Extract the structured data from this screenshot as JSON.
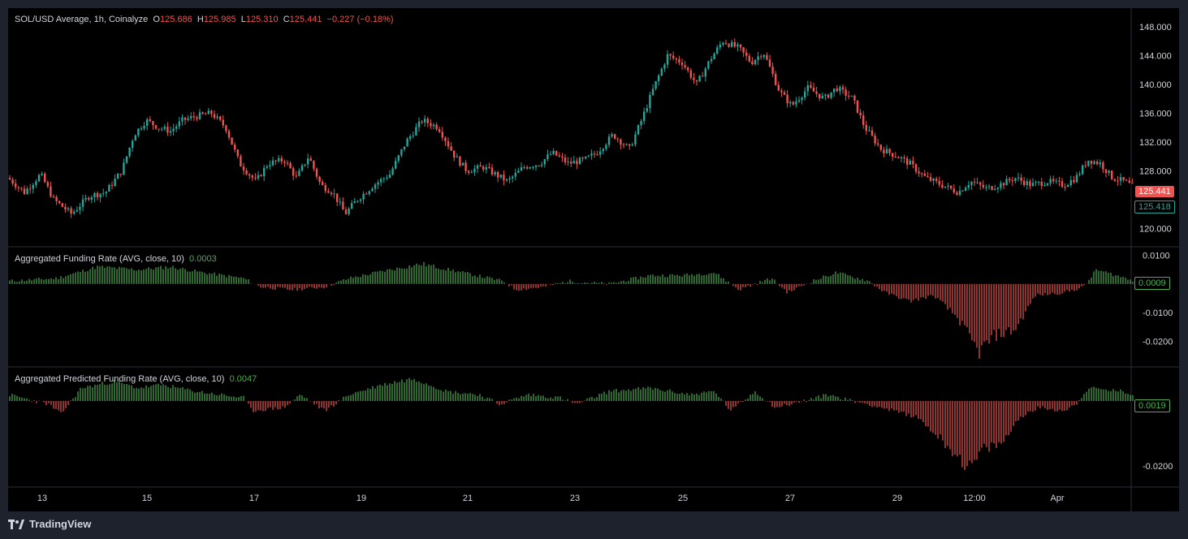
{
  "header": {
    "symbol": "SOL/USD Average, 1h, Coinalyze",
    "open_label": "O",
    "open": "125.686",
    "high_label": "H",
    "high": "125.985",
    "low_label": "L",
    "low": "125.310",
    "close_label": "C",
    "close": "125.441",
    "change": "−0.227 (−0.18%)"
  },
  "panes": {
    "funding": {
      "title": "Aggregated Funding Rate (AVG, close, 10)",
      "value": "0.0003",
      "tag": "0.0009"
    },
    "predicted": {
      "title": "Aggregated Predicted Funding Rate (AVG, close, 10)",
      "value": "0.0047",
      "tag": "0.0019"
    }
  },
  "price_tags": {
    "last": "125.441",
    "prev": "125.418"
  },
  "footer": {
    "brand": "TradingView"
  },
  "colors": {
    "up": "#26a69a",
    "down": "#ef5350",
    "pos_bar": "#4caf50",
    "neg_bar": "#ef5350",
    "background": "#000000"
  },
  "chart_data": [
    {
      "type": "candlestick",
      "title": "SOL/USD Average, 1h, Coinalyze",
      "x_ticks": [
        "13",
        "15",
        "17",
        "19",
        "21",
        "23",
        "25",
        "27",
        "29",
        "12:00",
        "Apr"
      ],
      "y_ticks": [
        "148.000",
        "144.000",
        "140.000",
        "136.000",
        "132.000",
        "128.000",
        "120.000"
      ],
      "ylim": [
        118.0,
        150.0
      ],
      "close_series": [
        [
          0,
          127.0
        ],
        [
          10,
          126.0
        ],
        [
          20,
          125.0
        ],
        [
          40,
          127.5
        ],
        [
          56,
          124.0
        ],
        [
          78,
          122.0
        ],
        [
          100,
          124.5
        ],
        [
          120,
          125.0
        ],
        [
          140,
          128.0
        ],
        [
          155,
          133.0
        ],
        [
          170,
          135.0
        ],
        [
          185,
          134.0
        ],
        [
          200,
          133.5
        ],
        [
          215,
          135.0
        ],
        [
          230,
          135.5
        ],
        [
          250,
          136.0
        ],
        [
          268,
          134.0
        ],
        [
          285,
          129.0
        ],
        [
          305,
          126.5
        ],
        [
          320,
          129.0
        ],
        [
          340,
          129.5
        ],
        [
          355,
          127.0
        ],
        [
          370,
          130.0
        ],
        [
          385,
          126.0
        ],
        [
          400,
          125.0
        ],
        [
          415,
          122.0
        ],
        [
          430,
          124.0
        ],
        [
          450,
          126.0
        ],
        [
          470,
          127.5
        ],
        [
          490,
          132.0
        ],
        [
          510,
          135.0
        ],
        [
          530,
          134.0
        ],
        [
          550,
          130.0
        ],
        [
          565,
          128.0
        ],
        [
          585,
          128.5
        ],
        [
          600,
          127.5
        ],
        [
          615,
          126.5
        ],
        [
          635,
          128.5
        ],
        [
          655,
          129.0
        ],
        [
          670,
          130.5
        ],
        [
          690,
          129.0
        ],
        [
          710,
          129.5
        ],
        [
          725,
          130.5
        ],
        [
          745,
          133.0
        ],
        [
          765,
          131.0
        ],
        [
          780,
          135.0
        ],
        [
          795,
          139.5
        ],
        [
          812,
          144.0
        ],
        [
          830,
          143.0
        ],
        [
          848,
          140.0
        ],
        [
          865,
          143.5
        ],
        [
          880,
          146.0
        ],
        [
          900,
          145.0
        ],
        [
          915,
          143.0
        ],
        [
          930,
          144.5
        ],
        [
          950,
          139.0
        ],
        [
          965,
          137.0
        ],
        [
          985,
          139.5
        ],
        [
          1005,
          138.0
        ],
        [
          1020,
          139.5
        ],
        [
          1040,
          138.0
        ],
        [
          1055,
          134.0
        ],
        [
          1075,
          131.0
        ],
        [
          1095,
          130.0
        ],
        [
          1110,
          129.0
        ],
        [
          1130,
          127.0
        ],
        [
          1150,
          126.0
        ],
        [
          1170,
          125.0
        ],
        [
          1185,
          126.5
        ],
        [
          1205,
          125.5
        ],
        [
          1220,
          126.0
        ],
        [
          1240,
          127.0
        ],
        [
          1260,
          126.0
        ],
        [
          1280,
          126.5
        ],
        [
          1300,
          126.0
        ],
        [
          1315,
          127.0
        ],
        [
          1330,
          129.5
        ],
        [
          1345,
          129.0
        ],
        [
          1360,
          127.0
        ],
        [
          1375,
          126.5
        ],
        [
          1390,
          125.4
        ]
      ],
      "last_price": 125.441
    },
    {
      "type": "bar",
      "title": "Aggregated Funding Rate (AVG, close, 10)",
      "y_ticks": [
        "0.0100",
        "-0.0100",
        "-0.0200"
      ],
      "ylim": [
        -0.029,
        0.013
      ],
      "current": 0.0009,
      "control_points": [
        [
          0,
          0.001
        ],
        [
          60,
          0.002
        ],
        [
          110,
          0.006
        ],
        [
          160,
          0.005
        ],
        [
          200,
          0.006
        ],
        [
          240,
          0.004
        ],
        [
          290,
          0.002
        ],
        [
          310,
          -0.001
        ],
        [
          350,
          -0.002
        ],
        [
          390,
          -0.001
        ],
        [
          420,
          0.002
        ],
        [
          470,
          0.005
        ],
        [
          510,
          0.007
        ],
        [
          560,
          0.004
        ],
        [
          610,
          0.001
        ],
        [
          625,
          -0.002
        ],
        [
          660,
          -0.001
        ],
        [
          690,
          0.001
        ],
        [
          740,
          0.0
        ],
        [
          790,
          0.003
        ],
        [
          830,
          0.003
        ],
        [
          870,
          0.004
        ],
        [
          900,
          -0.002
        ],
        [
          940,
          0.002
        ],
        [
          960,
          -0.003
        ],
        [
          990,
          0.001
        ],
        [
          1020,
          0.004
        ],
        [
          1060,
          0.001
        ],
        [
          1080,
          -0.003
        ],
        [
          1110,
          -0.006
        ],
        [
          1140,
          -0.004
        ],
        [
          1170,
          -0.012
        ],
        [
          1195,
          -0.024
        ],
        [
          1215,
          -0.018
        ],
        [
          1240,
          -0.016
        ],
        [
          1265,
          -0.004
        ],
        [
          1300,
          -0.003
        ],
        [
          1325,
          -0.001
        ],
        [
          1340,
          0.005
        ],
        [
          1390,
          0.0009
        ]
      ]
    },
    {
      "type": "bar",
      "title": "Aggregated Predicted Funding Rate (AVG, close, 10)",
      "y_ticks": [
        "-0.0200"
      ],
      "ylim": [
        -0.0265,
        0.0105
      ],
      "current": 0.0019,
      "control_points": [
        [
          0,
          0.002
        ],
        [
          50,
          -0.001
        ],
        [
          65,
          -0.004
        ],
        [
          90,
          0.004
        ],
        [
          130,
          0.006
        ],
        [
          160,
          0.004
        ],
        [
          190,
          0.005
        ],
        [
          230,
          0.003
        ],
        [
          290,
          0.001
        ],
        [
          300,
          -0.003
        ],
        [
          340,
          -0.002
        ],
        [
          360,
          0.002
        ],
        [
          390,
          -0.003
        ],
        [
          420,
          0.002
        ],
        [
          460,
          0.005
        ],
        [
          500,
          0.007
        ],
        [
          540,
          0.003
        ],
        [
          580,
          0.002
        ],
        [
          605,
          -0.001
        ],
        [
          640,
          0.002
        ],
        [
          680,
          0.001
        ],
        [
          700,
          -0.001
        ],
        [
          740,
          0.003
        ],
        [
          790,
          0.004
        ],
        [
          840,
          0.002
        ],
        [
          870,
          0.003
        ],
        [
          890,
          -0.003
        ],
        [
          920,
          0.003
        ],
        [
          945,
          -0.002
        ],
        [
          980,
          0.0
        ],
        [
          1010,
          0.002
        ],
        [
          1040,
          0.0
        ],
        [
          1060,
          -0.001
        ],
        [
          1090,
          -0.003
        ],
        [
          1120,
          -0.005
        ],
        [
          1150,
          -0.012
        ],
        [
          1185,
          -0.021
        ],
        [
          1200,
          -0.015
        ],
        [
          1225,
          -0.013
        ],
        [
          1245,
          -0.005
        ],
        [
          1270,
          -0.002
        ],
        [
          1300,
          -0.003
        ],
        [
          1315,
          -0.001
        ],
        [
          1330,
          0.004
        ],
        [
          1370,
          0.003
        ],
        [
          1390,
          0.0019
        ]
      ]
    }
  ]
}
